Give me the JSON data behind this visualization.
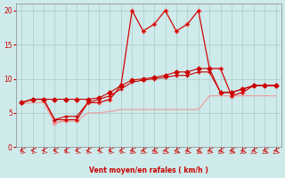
{
  "xlabel": "Vent moyen/en rafales ( km/h )",
  "bg_color": "#ceeaea",
  "grid_color": "#aacccc",
  "xlim": [
    -0.5,
    23.5
  ],
  "ylim": [
    0,
    21
  ],
  "yticks": [
    0,
    5,
    10,
    15,
    20
  ],
  "xticks": [
    0,
    1,
    2,
    3,
    4,
    5,
    6,
    7,
    8,
    9,
    10,
    11,
    12,
    13,
    14,
    15,
    16,
    17,
    18,
    19,
    20,
    21,
    22,
    23
  ],
  "dark_gust_x": [
    0,
    1,
    2,
    3,
    4,
    5,
    6,
    7,
    8,
    9,
    10,
    11,
    12,
    13,
    14,
    15,
    16,
    17,
    18,
    19,
    20,
    21,
    22,
    23
  ],
  "dark_gust_y": [
    6.5,
    7,
    7,
    4,
    4,
    4,
    6.5,
    6.5,
    7,
    9,
    20,
    17,
    18,
    20,
    17,
    18,
    20,
    11.5,
    11.5,
    7.5,
    8,
    9,
    9,
    9
  ],
  "light_gust_x": [
    0,
    1,
    2,
    3,
    4,
    5,
    6,
    7,
    8,
    9,
    10,
    11,
    12,
    13,
    14,
    15,
    16,
    17,
    18,
    19,
    20,
    21,
    22,
    23
  ],
  "light_gust_y": [
    6.5,
    7,
    7,
    3.5,
    4,
    4,
    6.5,
    6.5,
    7,
    9,
    20,
    17,
    18,
    20,
    17,
    18,
    20,
    11.5,
    11.5,
    7.5,
    8,
    9,
    9,
    9
  ],
  "light_mean_x": [
    0,
    1,
    2,
    3,
    4,
    5,
    6,
    7,
    8,
    9,
    10,
    11,
    12,
    13,
    14,
    15,
    16,
    17,
    18,
    19,
    20,
    21,
    22,
    23
  ],
  "light_mean_y": [
    6.3,
    6.5,
    6.5,
    3.5,
    3.8,
    3.8,
    5.0,
    5.0,
    5.2,
    5.5,
    5.5,
    5.5,
    5.5,
    5.5,
    5.5,
    5.5,
    5.5,
    7.5,
    7.5,
    7.5,
    7.5,
    7.5,
    7.5,
    7.5
  ],
  "dark_mean1_x": [
    0,
    1,
    2,
    3,
    4,
    5,
    6,
    7,
    8,
    9,
    10,
    11,
    12,
    13,
    14,
    15,
    16,
    17,
    18,
    19,
    20,
    21,
    22,
    23
  ],
  "dark_mean1_y": [
    6.5,
    7,
    7,
    7,
    7,
    7,
    7,
    7.2,
    8,
    9,
    9.8,
    10,
    10.2,
    10.5,
    11,
    11,
    11.5,
    11.5,
    8,
    8,
    8.5,
    9,
    9,
    9
  ],
  "dark_mean2_x": [
    0,
    1,
    2,
    3,
    4,
    5,
    6,
    7,
    8,
    9,
    10,
    11,
    12,
    13,
    14,
    15,
    16,
    17,
    18,
    19,
    20,
    21,
    22,
    23
  ],
  "dark_mean2_y": [
    6.5,
    7,
    7,
    4,
    4.5,
    4.5,
    6.5,
    7,
    7.5,
    8.5,
    9.5,
    9.8,
    10,
    10.2,
    10.5,
    10.5,
    11,
    11,
    8,
    8,
    8.5,
    9,
    9,
    9
  ],
  "dark_color": "#cc0000",
  "light_color": "#ee9999",
  "lw": 0.8
}
